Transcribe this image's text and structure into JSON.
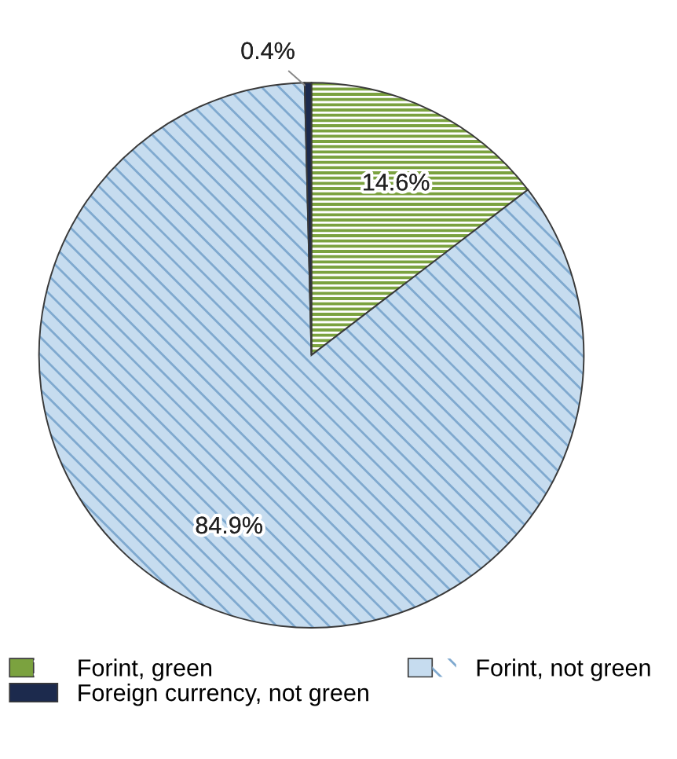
{
  "chart_data": {
    "type": "pie",
    "categories": [
      "Forint, green",
      "Forint, not green",
      "Foreign currency, not green"
    ],
    "values": [
      14.6,
      84.9,
      0.4
    ],
    "colors": [
      "#7ba23f",
      "#c6dcef",
      "#1c2a4d"
    ],
    "value_labels": [
      "14.6%",
      "84.9%",
      "0.4%"
    ],
    "legend": "bottom"
  }
}
